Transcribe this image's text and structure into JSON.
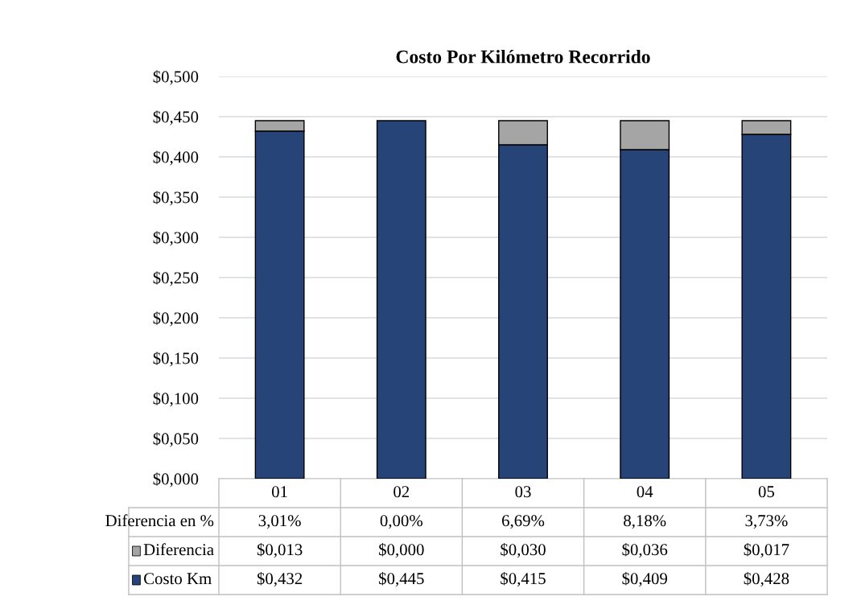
{
  "chart_data": {
    "type": "bar",
    "title": "Costo Por Kilómetro Recorrido",
    "stacked": true,
    "categories": [
      "01",
      "02",
      "03",
      "04",
      "05"
    ],
    "series": [
      {
        "name": "Costo Km",
        "color": "#264478",
        "values": [
          0.432,
          0.445,
          0.415,
          0.409,
          0.428
        ],
        "value_labels": [
          "$0,432",
          "$0,445",
          "$0,415",
          "$0,409",
          "$0,428"
        ]
      },
      {
        "name": "Diferencia",
        "color": "#a5a5a5",
        "values": [
          0.013,
          0.0,
          0.03,
          0.036,
          0.017
        ],
        "value_labels": [
          "$0,013",
          "$0,000",
          "$0,030",
          "$0,036",
          "$0,017"
        ]
      }
    ],
    "annotations": [
      "Diferencia en %",
      "3,01%",
      "0,00%",
      "6,69%",
      "8,18%",
      "3,73%"
    ],
    "ylim": [
      0,
      0.5
    ],
    "yticks": [
      {
        "value": 0,
        "label": "$0,000"
      },
      {
        "value": 0.05,
        "label": "$0,050"
      },
      {
        "value": 0.1,
        "label": "$0,100"
      },
      {
        "value": 0.15,
        "label": "$0,150"
      },
      {
        "value": 0.2,
        "label": "$0,200"
      },
      {
        "value": 0.25,
        "label": "$0,250"
      },
      {
        "value": 0.3,
        "label": "$0,300"
      },
      {
        "value": 0.35,
        "label": "$0,350"
      },
      {
        "value": 0.4,
        "label": "$0,400"
      },
      {
        "value": 0.45,
        "label": "$0,450"
      },
      {
        "value": 0.5,
        "label": "$0,500"
      }
    ],
    "grid": "y",
    "legend": "bottom"
  }
}
